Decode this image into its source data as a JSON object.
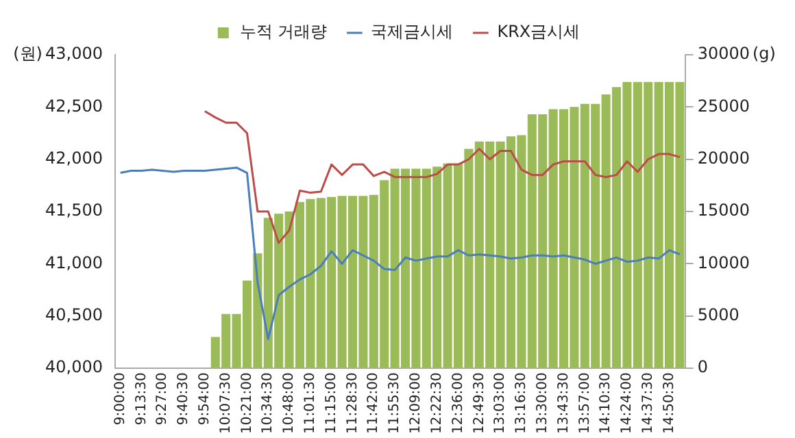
{
  "chart_data": {
    "type": "bar",
    "ylabel": "(원)",
    "y2label": "(g)",
    "legend": "top",
    "marker": "none",
    "categories": [
      "9:00:00",
      null,
      "9:13:30",
      null,
      "9:27:00",
      null,
      "9:40:30",
      null,
      "9:54:00",
      null,
      "10:07:30",
      null,
      "10:21:00",
      null,
      "10:34:30",
      null,
      "10:48:00",
      null,
      "11:01:30",
      null,
      "11:15:00",
      null,
      "11:28:30",
      null,
      "11:42:00",
      null,
      "11:55:30",
      null,
      "12:09:00",
      null,
      "12:22:30",
      null,
      "12:36:00",
      null,
      "12:49:30",
      null,
      "13:03:00",
      null,
      "13:16:30",
      null,
      "13:30:00",
      null,
      "13:43:30",
      null,
      "13:57:00",
      null,
      "14:10:30",
      null,
      "14:24:00",
      null,
      "14:37:30",
      null,
      "14:50:30",
      null
    ],
    "ylim": [
      40000,
      43000
    ],
    "yticks": [
      {
        "value": 40000,
        "label": "40,000"
      },
      {
        "value": 40500,
        "label": "40,500"
      },
      {
        "value": 41000,
        "label": "41,000"
      },
      {
        "value": 41500,
        "label": "41,500"
      },
      {
        "value": 42000,
        "label": "42,000"
      },
      {
        "value": 42500,
        "label": "42,500"
      },
      {
        "value": 43000,
        "label": "43,000"
      }
    ],
    "y2lim": [
      0,
      30000
    ],
    "y2ticks": [
      0,
      5000,
      10000,
      15000,
      20000,
      25000,
      30000
    ],
    "series": [
      {
        "name": "누적 거래량",
        "axis": "y2",
        "color": "#9bbb59",
        "values": [
          null,
          null,
          null,
          null,
          null,
          null,
          null,
          null,
          null,
          3000,
          5200,
          5200,
          8400,
          11000,
          14400,
          14800,
          15000,
          15900,
          16200,
          16300,
          16400,
          16500,
          16500,
          16500,
          16600,
          18000,
          19100,
          19100,
          19100,
          19100,
          19300,
          19600,
          19600,
          21000,
          21700,
          21700,
          21700,
          22200,
          22300,
          24300,
          24300,
          24800,
          24800,
          25000,
          25300,
          25300,
          26200,
          26900,
          27400,
          27400,
          27400,
          27400,
          27400,
          27400
        ]
      },
      {
        "name": "국제금시세",
        "type": "line",
        "axis": "y",
        "color": "#4a7ebb",
        "values": [
          41870,
          41890,
          41890,
          41900,
          41890,
          41880,
          41890,
          41890,
          41890,
          41900,
          41910,
          41920,
          41870,
          40820,
          40280,
          40700,
          40780,
          40850,
          40900,
          40980,
          41120,
          41000,
          41130,
          41080,
          41030,
          40950,
          40940,
          41060,
          41030,
          41050,
          41070,
          41070,
          41130,
          41080,
          41090,
          41080,
          41070,
          41050,
          41060,
          41080,
          41080,
          41070,
          41080,
          41060,
          41040,
          41000,
          41030,
          41060,
          41020,
          41030,
          41060,
          41050,
          41130,
          41090
        ]
      },
      {
        "name": "KRX금시세",
        "type": "line",
        "axis": "y",
        "color": "#be4b48",
        "values": [
          null,
          null,
          null,
          null,
          null,
          null,
          null,
          null,
          42460,
          42400,
          42350,
          42350,
          42250,
          41500,
          41500,
          41200,
          41320,
          41700,
          41680,
          41690,
          41950,
          41850,
          41950,
          41950,
          41840,
          41880,
          41830,
          41830,
          41830,
          41830,
          41860,
          41950,
          41950,
          42000,
          42100,
          42000,
          42080,
          42080,
          41900,
          41850,
          41850,
          41950,
          41980,
          41980,
          41980,
          41850,
          41830,
          41850,
          41980,
          41880,
          42000,
          42050,
          42050,
          42020
        ]
      }
    ]
  }
}
